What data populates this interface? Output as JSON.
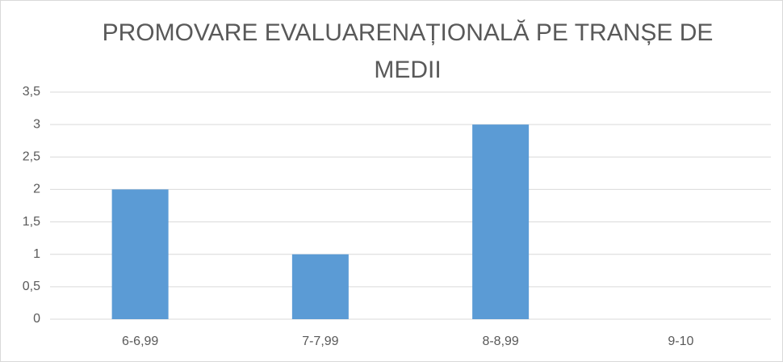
{
  "chart_data": {
    "type": "bar",
    "title": "PROMOVARE EVALUARENAȚIONALĂ PE TRANȘE DE MEDII",
    "categories": [
      "6-6,99",
      "7-7,99",
      "8-8,99",
      "9-10"
    ],
    "values": [
      2,
      1,
      3,
      0
    ],
    "color": "#5b9bd5",
    "ylim": [
      0,
      3.5
    ],
    "yticks": [
      0,
      {
        "value": 0.5,
        "label": "0,5"
      },
      1,
      {
        "value": 1.5,
        "label": "1,5"
      },
      2,
      {
        "value": 2.5,
        "label": "2,5"
      },
      3,
      {
        "value": 3.5,
        "label": "3,5"
      }
    ],
    "grid": true
  }
}
